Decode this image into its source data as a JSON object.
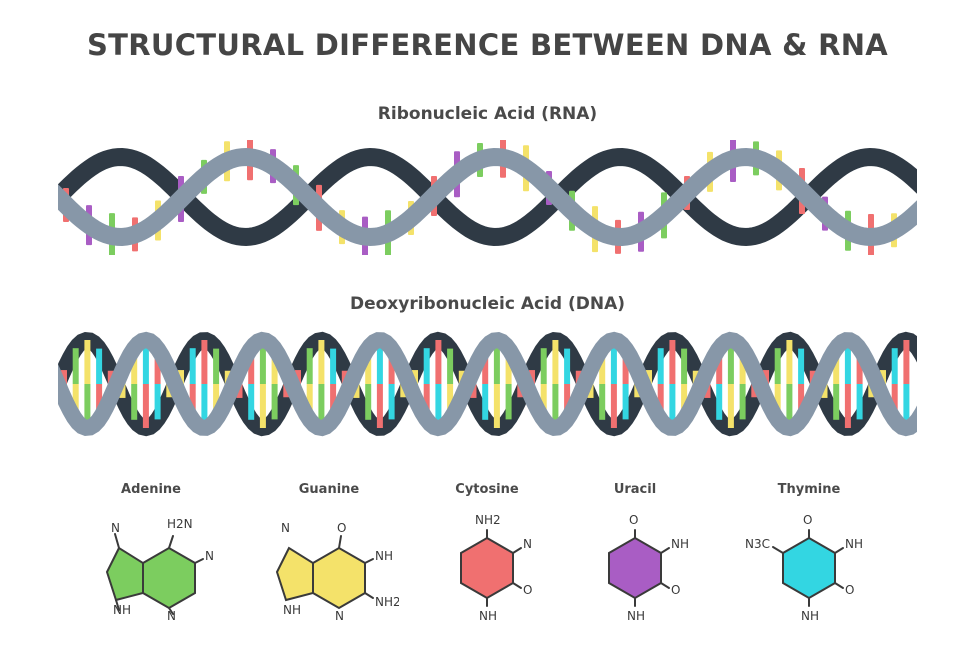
{
  "title": "STRUCTURAL DIFFERENCE BETWEEN DNA & RNA",
  "rna": {
    "title": "Ribonucleic Acid (RNA)"
  },
  "dna": {
    "title": "Deoxyribonucleic Acid (DNA)"
  },
  "colors": {
    "backbone_front": "#8797a8",
    "backbone_back": "#2f3a45",
    "red": "#f07070",
    "purple": "#a95dc4",
    "green": "#7ccd5f",
    "yellow": "#f4e26a",
    "cyan": "#33d6e2"
  },
  "bases": [
    {
      "key": "adenine",
      "name": "Adenine",
      "color": "#7ccd5f",
      "labels": {
        "n1": "N",
        "nh2": "H2N",
        "n2": "N",
        "nh": "NH",
        "n3": "N"
      }
    },
    {
      "key": "guanine",
      "name": "Guanine",
      "color": "#f4e26a",
      "labels": {
        "n1": "N",
        "o": "O",
        "nh": "NH",
        "nh2": "NH2",
        "n2": "N",
        "nh3": "NH"
      }
    },
    {
      "key": "cytosine",
      "name": "Cytosine",
      "color": "#f07070",
      "labels": {
        "nh2": "NH2",
        "n1": "N",
        "o": "O",
        "nh": "NH"
      }
    },
    {
      "key": "uracil",
      "name": "Uracil",
      "color": "#a95dc4",
      "labels": {
        "o1": "O",
        "nh1": "NH",
        "o2": "O",
        "nh2": "NH"
      }
    },
    {
      "key": "thymine",
      "name": "Thymine",
      "color": "#33d6e2",
      "labels": {
        "ch3": "N3C",
        "o1": "O",
        "nh1": "NH",
        "o2": "O",
        "nh2": "NH"
      }
    }
  ]
}
